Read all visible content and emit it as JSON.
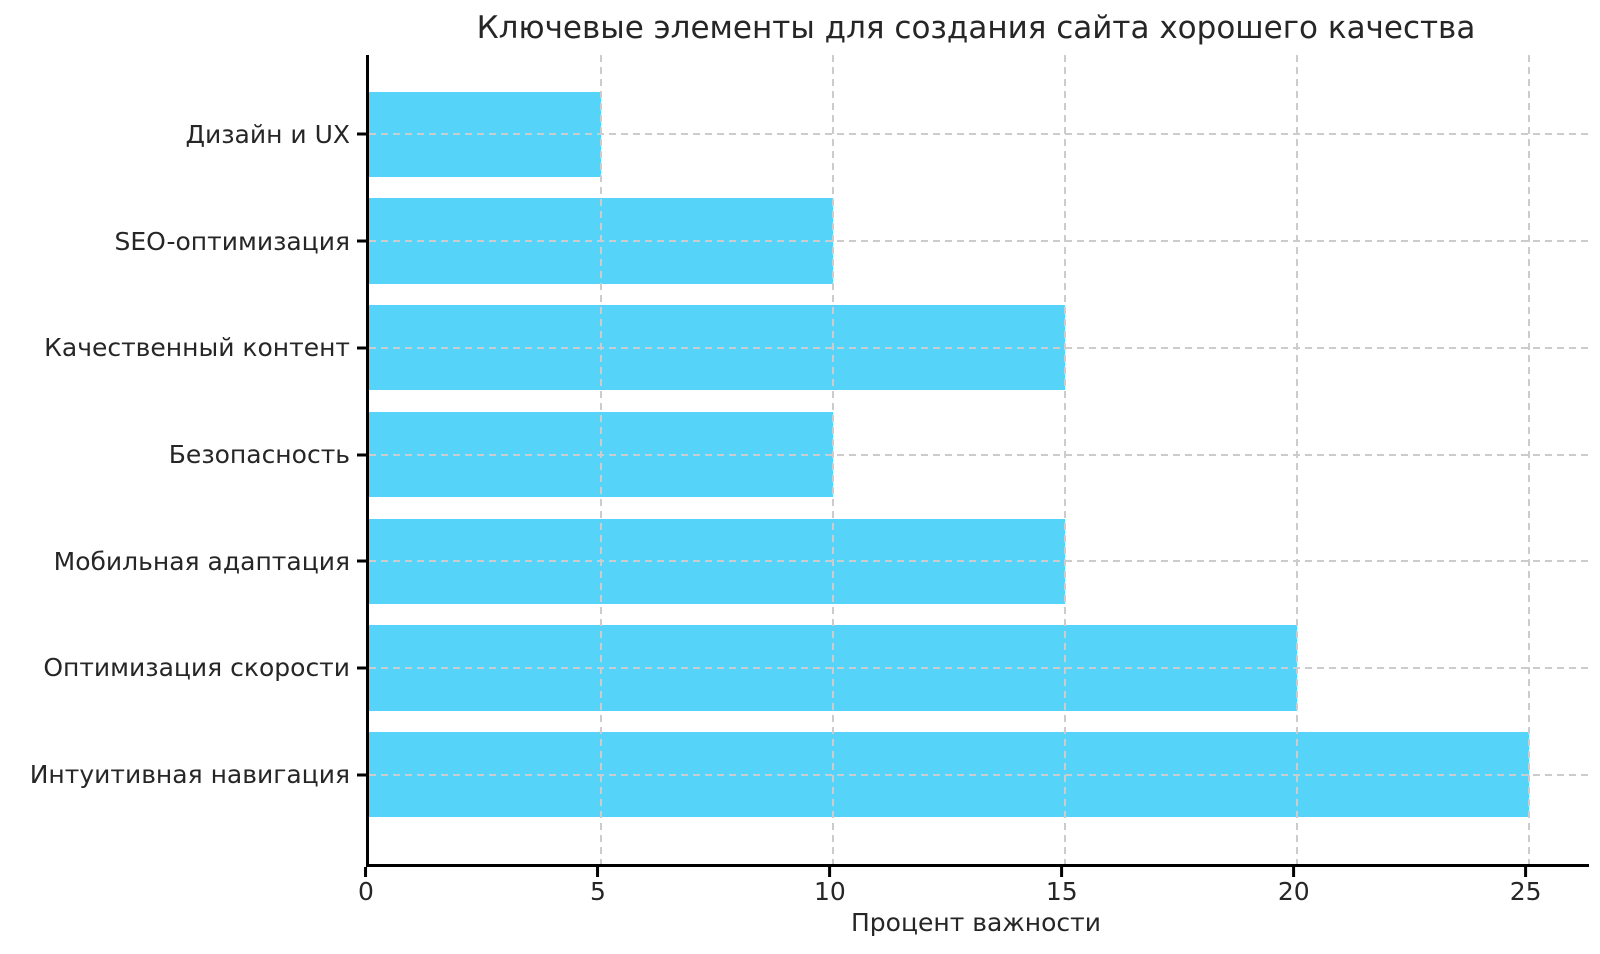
{
  "chart_data": {
    "type": "bar",
    "orientation": "horizontal",
    "title": "Ключевые элементы для создания сайта хорошего качества",
    "xlabel": "Процент важности",
    "ylabel": "",
    "categories": [
      "Дизайн и UX",
      "SEO-оптимизация",
      "Качественный контент",
      "Безопасность",
      "Мобильная адаптация",
      "Оптимизация скорости",
      "Интуитивная навигация"
    ],
    "values": [
      5,
      10,
      15,
      10,
      15,
      20,
      25
    ],
    "xticks": [
      0,
      5,
      10,
      15,
      20,
      25
    ],
    "xlim": [
      0,
      26.3
    ],
    "grid": "dashed, both axes, drawn over bars",
    "legend": "none",
    "colors": {
      "bar": "#55d3f8",
      "grid": "#cccccc",
      "axis": "#000000",
      "text": "#262626",
      "background": "#ffffff"
    }
  }
}
